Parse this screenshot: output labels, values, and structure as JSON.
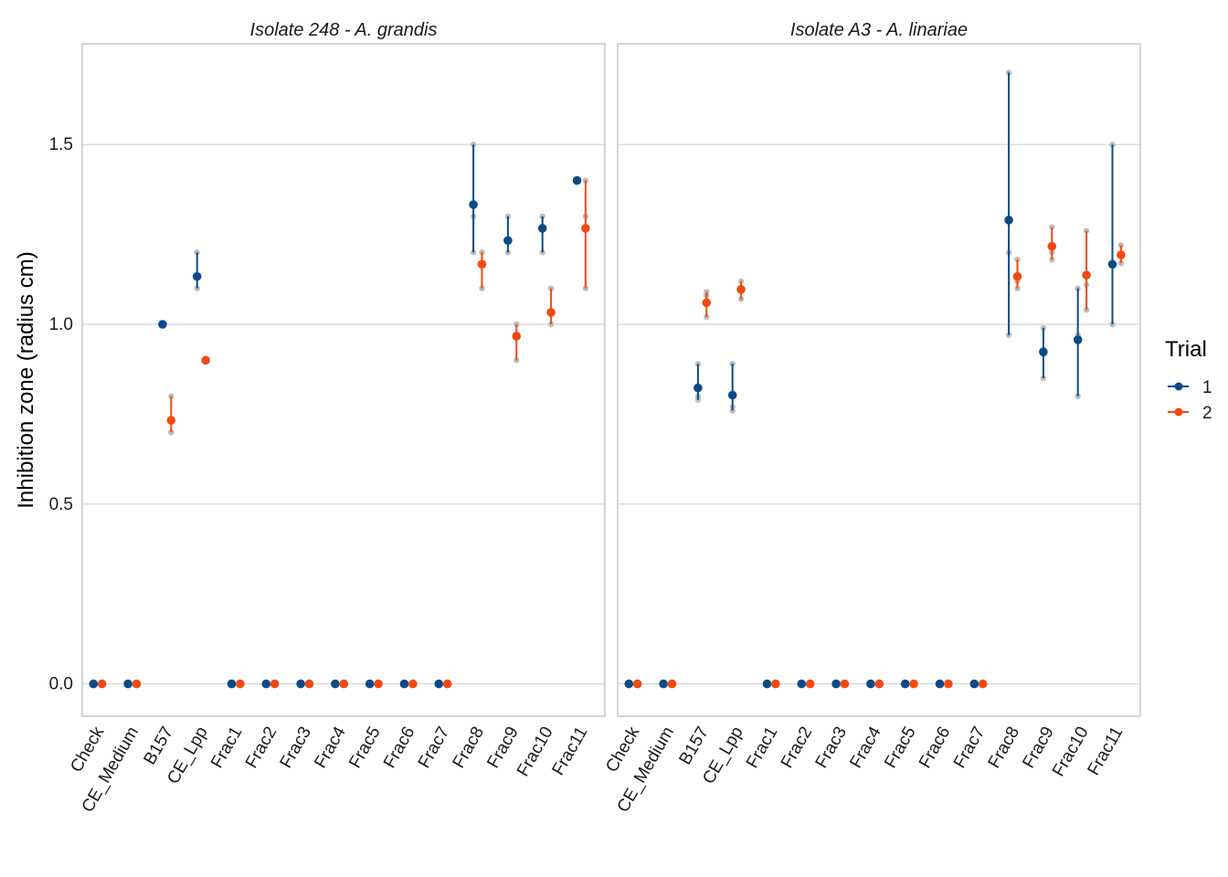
{
  "colors": {
    "trial_1": "#0c4a86",
    "trial_2": "#f04a12",
    "raw_points": "#bdbdbd",
    "grid": "#d2d2d2",
    "panel_border": "#bdbdbd"
  },
  "chart_data": {
    "type": "scatter",
    "ylabel": "Inhibition zone (radius cm)",
    "xlabel": "",
    "ylim": [
      -0.09,
      1.78
    ],
    "yticks": [
      0.0,
      0.5,
      1.0,
      1.5
    ],
    "ytick_labels": [
      "0.0",
      "0.5",
      "1.0",
      "1.5"
    ],
    "grid": true,
    "categories": [
      "Check",
      "CE_Medium",
      "B157",
      "CE_Lpp",
      "Frac1",
      "Frac2",
      "Frac3",
      "Frac4",
      "Frac5",
      "Frac6",
      "Frac7",
      "Frac8",
      "Frac9",
      "Frac10",
      "Frac11"
    ],
    "legend": {
      "title": "Trial",
      "position": "right",
      "entries": [
        "1",
        "2"
      ]
    },
    "panels": [
      {
        "title": "Isolate 248 - A. grandis",
        "series": [
          {
            "name": "1",
            "mean": [
              0,
              0,
              1.0,
              1.133,
              0,
              0,
              0,
              0,
              0,
              0,
              0,
              1.333,
              1.233,
              1.267,
              1.4
            ],
            "lower": [
              0,
              0,
              1.0,
              1.1,
              0,
              0,
              0,
              0,
              0,
              0,
              0,
              1.2,
              1.2,
              1.2,
              1.4
            ],
            "upper": [
              0,
              0,
              1.0,
              1.2,
              0,
              0,
              0,
              0,
              0,
              0,
              0,
              1.5,
              1.3,
              1.3,
              1.4
            ],
            "raw": [
              [
                0
              ],
              [
                0
              ],
              [
                1.0
              ],
              [
                1.1,
                1.1,
                1.2
              ],
              [
                0
              ],
              [
                0
              ],
              [
                0
              ],
              [
                0
              ],
              [
                0
              ],
              [
                0
              ],
              [
                0
              ],
              [
                1.2,
                1.3,
                1.5
              ],
              [
                1.2,
                1.2,
                1.3
              ],
              [
                1.2,
                1.3,
                1.3
              ],
              [
                1.4
              ]
            ]
          },
          {
            "name": "2",
            "mean": [
              0,
              0,
              0.733,
              0.9,
              0,
              0,
              0,
              0,
              0,
              0,
              0,
              1.167,
              0.967,
              1.033,
              1.267
            ],
            "lower": [
              0,
              0,
              0.7,
              0.9,
              0,
              0,
              0,
              0,
              0,
              0,
              0,
              1.1,
              0.9,
              1.0,
              1.1
            ],
            "upper": [
              0,
              0,
              0.8,
              0.9,
              0,
              0,
              0,
              0,
              0,
              0,
              0,
              1.2,
              1.0,
              1.1,
              1.4
            ],
            "raw": [
              [
                0
              ],
              [
                0
              ],
              [
                0.7,
                0.7,
                0.8
              ],
              [
                0.9
              ],
              [
                0
              ],
              [
                0
              ],
              [
                0
              ],
              [
                0
              ],
              [
                0
              ],
              [
                0
              ],
              [
                0
              ],
              [
                1.1,
                1.2,
                1.2
              ],
              [
                0.9,
                1.0,
                1.0
              ],
              [
                1.0,
                1.0,
                1.1
              ],
              [
                1.1,
                1.3,
                1.4
              ]
            ]
          }
        ]
      },
      {
        "title": "Isolate A3 - A. linariae",
        "series": [
          {
            "name": "1",
            "mean": [
              0,
              0,
              0.823,
              0.803,
              0,
              0,
              0,
              0,
              0,
              0,
              0,
              1.29,
              0.923,
              0.957,
              1.167
            ],
            "lower": [
              0,
              0,
              0.79,
              0.76,
              0,
              0,
              0,
              0,
              0,
              0,
              0,
              0.97,
              0.85,
              0.8,
              1.0
            ],
            "upper": [
              0,
              0,
              0.89,
              0.89,
              0,
              0,
              0,
              0,
              0,
              0,
              0,
              1.7,
              0.99,
              1.1,
              1.5
            ],
            "raw": [
              [
                0
              ],
              [
                0
              ],
              [
                0.79,
                0.8,
                0.89
              ],
              [
                0.76,
                0.77,
                0.89
              ],
              [
                0
              ],
              [
                0
              ],
              [
                0
              ],
              [
                0
              ],
              [
                0
              ],
              [
                0
              ],
              [
                0
              ],
              [
                0.97,
                1.2,
                1.7
              ],
              [
                0.85,
                0.93,
                0.99
              ],
              [
                0.8,
                0.97,
                1.1
              ],
              [
                1.0,
                1.17,
                1.5
              ]
            ]
          },
          {
            "name": "2",
            "mean": [
              0,
              0,
              1.06,
              1.097,
              0,
              0,
              0,
              0,
              0,
              0,
              0,
              1.133,
              1.217,
              1.137,
              1.193
            ],
            "lower": [
              0,
              0,
              1.02,
              1.07,
              0,
              0,
              0,
              0,
              0,
              0,
              0,
              1.1,
              1.18,
              1.04,
              1.17
            ],
            "upper": [
              0,
              0,
              1.09,
              1.12,
              0,
              0,
              0,
              0,
              0,
              0,
              0,
              1.18,
              1.27,
              1.26,
              1.22
            ],
            "raw": [
              [
                0
              ],
              [
                0
              ],
              [
                1.02,
                1.08,
                1.09
              ],
              [
                1.07,
                1.1,
                1.12
              ],
              [
                0
              ],
              [
                0
              ],
              [
                0
              ],
              [
                0
              ],
              [
                0
              ],
              [
                0
              ],
              [
                0
              ],
              [
                1.1,
                1.12,
                1.18
              ],
              [
                1.18,
                1.2,
                1.27
              ],
              [
                1.04,
                1.11,
                1.26
              ],
              [
                1.17,
                1.19,
                1.22
              ]
            ]
          }
        ]
      }
    ]
  }
}
